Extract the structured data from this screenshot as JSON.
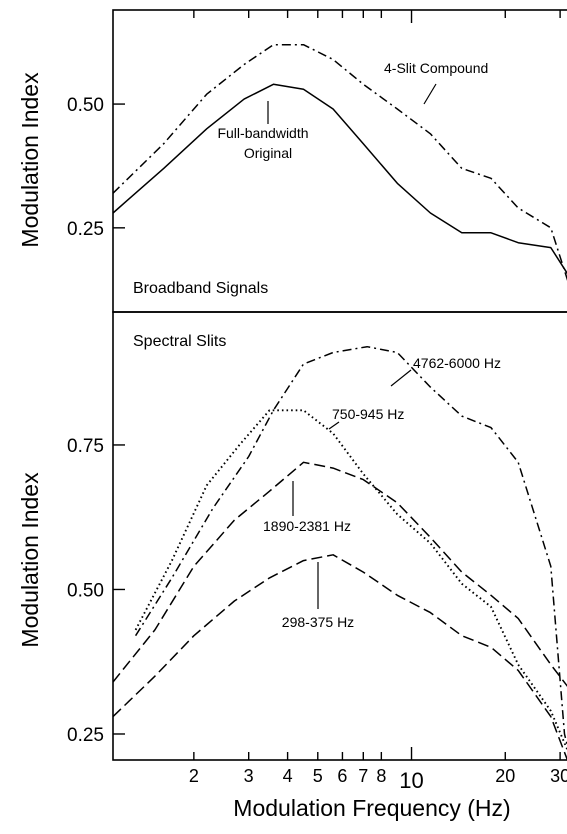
{
  "chart_data": {
    "type": "line",
    "xlabel": "Modulation Frequency (Hz)",
    "x_scale": "log",
    "xlim": [
      1.1,
      33
    ],
    "x_ticks_major": [
      10
    ],
    "x_ticks_minor": [
      2,
      3,
      4,
      5,
      6,
      7,
      8,
      20,
      30
    ],
    "x_tick_labels": [
      {
        "x": 2,
        "label": "2"
      },
      {
        "x": 3,
        "label": "3"
      },
      {
        "x": 4,
        "label": "4"
      },
      {
        "x": 5,
        "label": "5"
      },
      {
        "x": 6,
        "label": "6"
      },
      {
        "x": 7,
        "label": "7"
      },
      {
        "x": 8,
        "label": "8"
      },
      {
        "x": 10,
        "label": "10"
      },
      {
        "x": 20,
        "label": "20"
      },
      {
        "x": 30,
        "label": "30"
      }
    ],
    "panels": [
      {
        "panel_label": "Broadband Signals",
        "ylabel": "Modulation Index",
        "ylim": [
          0.08,
          0.69
        ],
        "y_ticks": [
          0.25,
          0.5
        ],
        "y_tick_labels": [
          "0.25",
          "0.50"
        ],
        "series": [
          {
            "name": "Full-bandwidth Original",
            "dash": "solid",
            "x": [
              1.1,
              1.6,
              2.2,
              2.9,
              3.6,
              4.5,
              5.6,
              7.0,
              9.0,
              11.5,
              14.5,
              18.0,
              22.0,
              28.0,
              33.0
            ],
            "y": [
              0.28,
              0.37,
              0.45,
              0.51,
              0.54,
              0.53,
              0.49,
              0.42,
              0.34,
              0.28,
              0.24,
              0.24,
              0.22,
              0.21,
              0.14
            ]
          },
          {
            "name": "4-Slit Compound",
            "dash": "dashdot",
            "x": [
              1.1,
              1.6,
              2.2,
              2.9,
              3.6,
              4.5,
              5.6,
              7.0,
              9.0,
              11.5,
              14.5,
              18.0,
              22.0,
              28.0,
              33.0
            ],
            "y": [
              0.32,
              0.42,
              0.52,
              0.58,
              0.62,
              0.62,
              0.59,
              0.54,
              0.49,
              0.44,
              0.37,
              0.35,
              0.29,
              0.25,
              0.11
            ]
          }
        ],
        "annotations": [
          {
            "text": "4-Slit Compound",
            "target_series": "4-Slit Compound"
          },
          {
            "text": "Full-bandwidth",
            "target_series": "Full-bandwidth Original"
          },
          {
            "text": "Original",
            "target_series": "Full-bandwidth Original"
          }
        ]
      },
      {
        "panel_label": "Spectral Slits",
        "ylabel": "Modulation Index",
        "ylim": [
          0.205,
          0.98
        ],
        "y_ticks": [
          0.25,
          0.5,
          0.75
        ],
        "y_tick_labels": [
          "0.25",
          "0.50",
          "0.75"
        ],
        "series": [
          {
            "name": "4762-6000 Hz",
            "dash": "dashdot",
            "x": [
              1.3,
              1.7,
              2.3,
              3.0,
              3.6,
              4.5,
              5.6,
              7.2,
              9.0,
              11.5,
              14.5,
              18.0,
              22.0,
              28.0,
              31.0,
              33.0
            ],
            "y": [
              0.42,
              0.52,
              0.64,
              0.73,
              0.81,
              0.89,
              0.91,
              0.92,
              0.91,
              0.85,
              0.8,
              0.78,
              0.72,
              0.54,
              0.25,
              0.19
            ]
          },
          {
            "name": "750-945 Hz",
            "dash": "dotted",
            "x": [
              1.3,
              1.7,
              2.2,
              2.8,
              3.5,
              4.5,
              5.6,
              7.0,
              9.0,
              11.5,
              14.5,
              18.0,
              22.0,
              28.0,
              33.0
            ],
            "y": [
              0.43,
              0.55,
              0.68,
              0.75,
              0.81,
              0.81,
              0.77,
              0.7,
              0.63,
              0.58,
              0.51,
              0.47,
              0.37,
              0.29,
              0.2
            ]
          },
          {
            "name": "1890-2381 Hz",
            "dash": "dashed",
            "x": [
              1.1,
              1.5,
              2.0,
              2.7,
              3.5,
              4.5,
              5.6,
              7.0,
              9.0,
              11.5,
              14.5,
              18.0,
              22.0,
              28.0,
              33.0
            ],
            "y": [
              0.34,
              0.43,
              0.54,
              0.62,
              0.67,
              0.72,
              0.71,
              0.69,
              0.65,
              0.59,
              0.53,
              0.49,
              0.45,
              0.37,
              0.32
            ]
          },
          {
            "name": "298-375 Hz",
            "dash": "dashed",
            "x": [
              1.1,
              1.5,
              2.0,
              2.7,
              3.5,
              4.5,
              5.6,
              7.0,
              9.0,
              11.5,
              14.5,
              18.0,
              22.0,
              28.0,
              33.0
            ],
            "y": [
              0.28,
              0.35,
              0.42,
              0.48,
              0.52,
              0.55,
              0.56,
              0.53,
              0.49,
              0.46,
              0.42,
              0.4,
              0.36,
              0.28,
              0.18
            ]
          }
        ],
        "annotations": [
          {
            "text": "4762-6000 Hz",
            "target_series": "4762-6000 Hz"
          },
          {
            "text": "750-945 Hz",
            "target_series": "750-945 Hz"
          },
          {
            "text": "1890-2381 Hz",
            "target_series": "1890-2381 Hz"
          },
          {
            "text": "298-375 Hz",
            "target_series": "298-375 Hz"
          }
        ]
      }
    ]
  }
}
